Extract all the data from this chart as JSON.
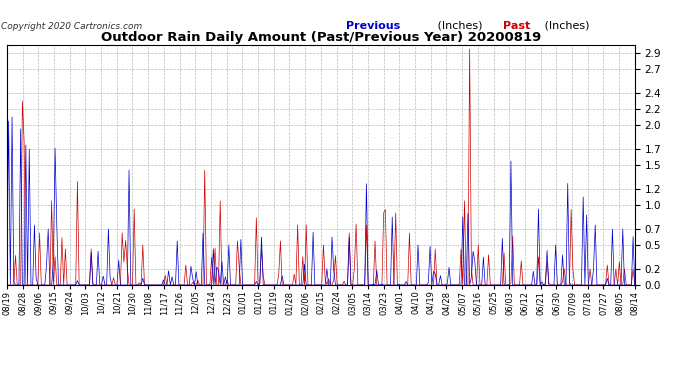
{
  "title": "Outdoor Rain Daily Amount (Past/Previous Year) 20200819",
  "copyright": "Copyright 2020 Cartronics.com",
  "legend_previous": "Previous",
  "legend_past": "Past",
  "legend_unit": "(Inches)",
  "ylim": [
    0,
    3.0
  ],
  "yticks": [
    0.0,
    0.2,
    0.5,
    0.7,
    1.0,
    1.2,
    1.5,
    1.7,
    2.0,
    2.2,
    2.4,
    2.7,
    2.9
  ],
  "bg_color": "#ffffff",
  "grid_color": "#bbbbbb",
  "previous_color": "#0000cc",
  "past_color": "#222222",
  "title_color": "#000000",
  "copyright_color": "#333333",
  "xtick_labels": [
    "08/19",
    "08/28",
    "09/06",
    "09/15",
    "09/24",
    "10/03",
    "10/12",
    "10/21",
    "10/30",
    "11/08",
    "11/17",
    "11/26",
    "12/05",
    "12/14",
    "12/23",
    "01/01",
    "01/10",
    "01/19",
    "01/28",
    "02/06",
    "02/15",
    "02/24",
    "03/05",
    "03/14",
    "03/23",
    "04/01",
    "04/10",
    "04/19",
    "04/28",
    "05/07",
    "05/16",
    "05/25",
    "06/03",
    "06/12",
    "06/21",
    "06/30",
    "07/09",
    "07/18",
    "07/27",
    "08/05",
    "08/14"
  ],
  "n_points": 366,
  "seed": 42
}
